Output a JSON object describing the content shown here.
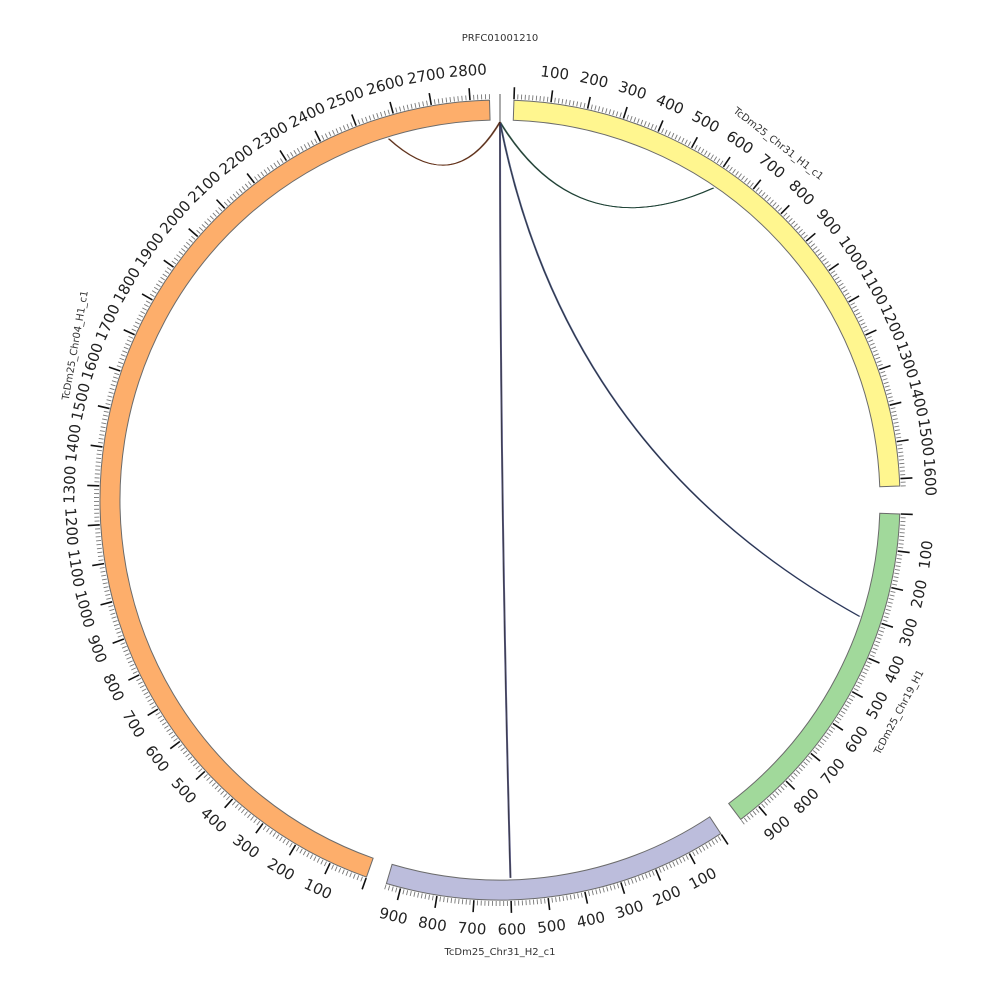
{
  "figure": {
    "type": "circos",
    "segments": [
      {
        "name": "PRFC01001210",
        "length": 2,
        "color": "#ffffff",
        "tick_labels": []
      },
      {
        "name": "TcDm25_Chr31_H1_c1",
        "length": 1620,
        "color": "#fff68f",
        "tick_labels": [
          "100",
          "200",
          "300",
          "400",
          "500",
          "600",
          "700",
          "800",
          "900",
          "1000",
          "1100",
          "1200",
          "1300",
          "1400",
          "1500",
          "1600"
        ]
      },
      {
        "name": "TcDm25_Chr19_H1",
        "length": 960,
        "color": "#a1d99b",
        "tick_labels": [
          "100",
          "200",
          "300",
          "400",
          "500",
          "600",
          "700",
          "800",
          "900"
        ]
      },
      {
        "name": "TcDm25_Chr31_H2_c1",
        "length": 940,
        "color": "#bcbddc",
        "tick_labels": [
          "100",
          "200",
          "300",
          "400",
          "500",
          "600",
          "700",
          "800",
          "900"
        ]
      },
      {
        "name": "TcDm25_Chr04_H1_c1",
        "length": 2850,
        "color": "#fdae6b",
        "tick_labels": [
          "100",
          "200",
          "300",
          "400",
          "500",
          "600",
          "700",
          "800",
          "900",
          "1000",
          "1100",
          "1200",
          "1300",
          "1400",
          "1500",
          "1600",
          "1700",
          "1800",
          "1900",
          "2000",
          "2100",
          "2200",
          "2300",
          "2400",
          "2500",
          "2600",
          "2700",
          "2800"
        ]
      }
    ],
    "links": [
      {
        "from": "PRFC01001210",
        "to": "TcDm25_Chr31_H1_c1",
        "to_pos": 610,
        "color": "#1f4e3d"
      },
      {
        "from": "PRFC01001210",
        "to": "TcDm25_Chr19_H1",
        "to_pos": 300,
        "color": "#2f3f6f"
      },
      {
        "from": "PRFC01001210",
        "to": "TcDm25_Chr31_H2_c1",
        "to_pos": 600,
        "color": "#3a3a6a"
      },
      {
        "from": "PRFC01001210",
        "to": "TcDm25_Chr04_H1_c1",
        "to_pos": 2570,
        "color": "#7a3a1a"
      }
    ]
  }
}
